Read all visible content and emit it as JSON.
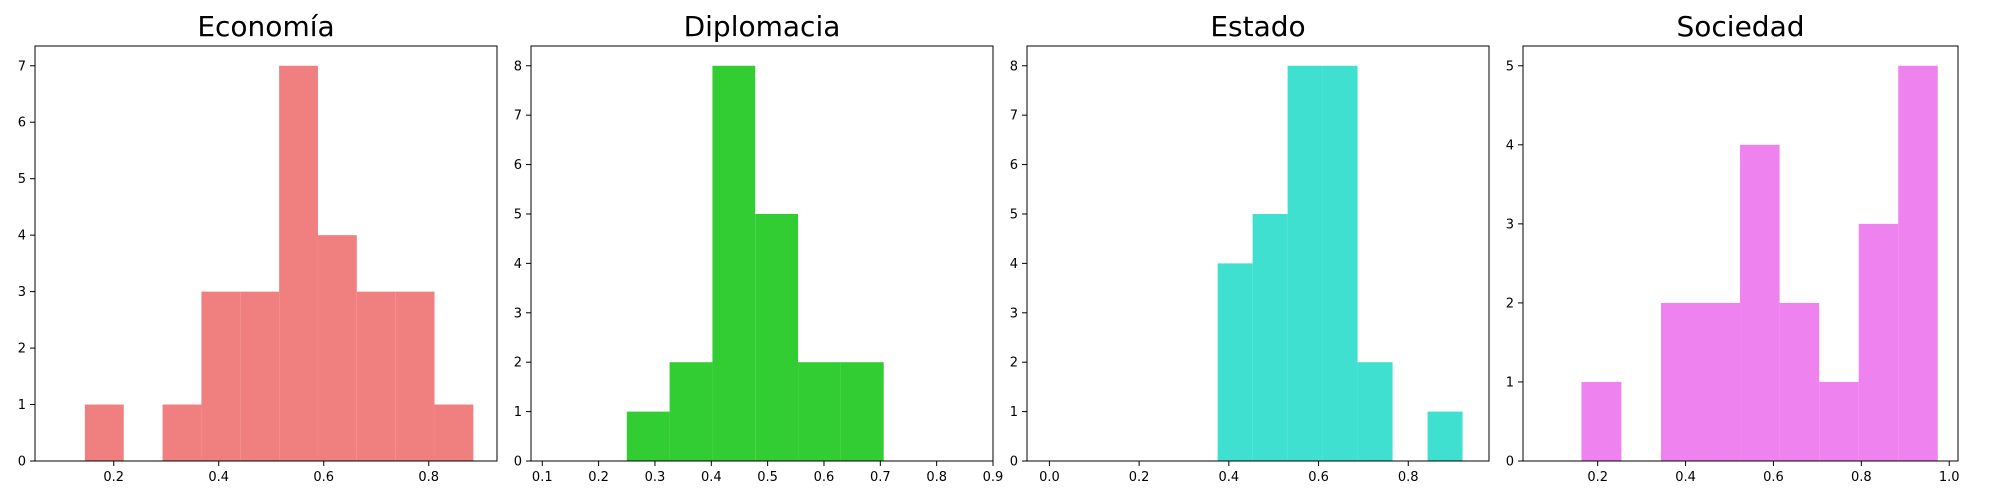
{
  "chart_data": [
    {
      "type": "bar",
      "title": "Economía",
      "color": "#f08080",
      "xlim": [
        0.05,
        0.93
      ],
      "ylim": [
        0,
        7.35
      ],
      "xticks": [
        0.2,
        0.4,
        0.6,
        0.8
      ],
      "xtick_labels": [
        "0.2",
        "0.4",
        "0.6",
        "0.8"
      ],
      "yticks": [
        0,
        1,
        2,
        3,
        4,
        5,
        6,
        7
      ],
      "ytick_labels": [
        "0",
        "1",
        "2",
        "3",
        "4",
        "5",
        "6",
        "7"
      ],
      "bins": [
        {
          "x0": 0.145,
          "x1": 0.219,
          "count": 1
        },
        {
          "x0": 0.219,
          "x1": 0.293,
          "count": 0
        },
        {
          "x0": 0.293,
          "x1": 0.367,
          "count": 1
        },
        {
          "x0": 0.367,
          "x1": 0.441,
          "count": 3
        },
        {
          "x0": 0.441,
          "x1": 0.515,
          "count": 3
        },
        {
          "x0": 0.515,
          "x1": 0.589,
          "count": 7
        },
        {
          "x0": 0.589,
          "x1": 0.663,
          "count": 4
        },
        {
          "x0": 0.663,
          "x1": 0.737,
          "count": 3
        },
        {
          "x0": 0.737,
          "x1": 0.811,
          "count": 3
        },
        {
          "x0": 0.811,
          "x1": 0.885,
          "count": 1
        }
      ]
    },
    {
      "type": "bar",
      "title": "Diplomacia",
      "color": "#32cd32",
      "xlim": [
        0.08,
        0.9
      ],
      "ylim": [
        0,
        8.4
      ],
      "xticks": [
        0.1,
        0.2,
        0.3,
        0.4,
        0.5,
        0.6,
        0.7,
        0.8,
        0.9
      ],
      "xtick_labels": [
        "0.1",
        "0.2",
        "0.3",
        "0.4",
        "0.5",
        "0.6",
        "0.7",
        "0.8",
        "0.9"
      ],
      "yticks": [
        0,
        1,
        2,
        3,
        4,
        5,
        6,
        7,
        8
      ],
      "ytick_labels": [
        "0",
        "1",
        "2",
        "3",
        "4",
        "5",
        "6",
        "7",
        "8"
      ],
      "bins": [
        {
          "x0": 0.25,
          "x1": 0.326,
          "count": 1
        },
        {
          "x0": 0.326,
          "x1": 0.402,
          "count": 2
        },
        {
          "x0": 0.402,
          "x1": 0.478,
          "count": 8
        },
        {
          "x0": 0.478,
          "x1": 0.554,
          "count": 5
        },
        {
          "x0": 0.554,
          "x1": 0.63,
          "count": 2
        },
        {
          "x0": 0.63,
          "x1": 0.706,
          "count": 2
        }
      ]
    },
    {
      "type": "bar",
      "title": "Estado",
      "color": "#40e0d0",
      "xlim": [
        -0.05,
        0.98
      ],
      "ylim": [
        0,
        8.4
      ],
      "xticks": [
        0.0,
        0.2,
        0.4,
        0.6,
        0.8
      ],
      "xtick_labels": [
        "0.0",
        "0.2",
        "0.4",
        "0.6",
        "0.8"
      ],
      "yticks": [
        0,
        1,
        2,
        3,
        4,
        5,
        6,
        7,
        8
      ],
      "ytick_labels": [
        "0",
        "1",
        "2",
        "3",
        "4",
        "5",
        "6",
        "7",
        "8"
      ],
      "bins": [
        {
          "x0": 0.375,
          "x1": 0.453,
          "count": 4
        },
        {
          "x0": 0.453,
          "x1": 0.531,
          "count": 5
        },
        {
          "x0": 0.531,
          "x1": 0.609,
          "count": 8
        },
        {
          "x0": 0.609,
          "x1": 0.687,
          "count": 8
        },
        {
          "x0": 0.687,
          "x1": 0.765,
          "count": 2
        },
        {
          "x0": 0.765,
          "x1": 0.843,
          "count": 0
        },
        {
          "x0": 0.843,
          "x1": 0.921,
          "count": 1
        }
      ]
    },
    {
      "type": "bar",
      "title": "Sociedad",
      "color": "#ee82ee",
      "xlim": [
        0.03,
        1.02
      ],
      "ylim": [
        0,
        5.25
      ],
      "xticks": [
        0.2,
        0.4,
        0.6,
        0.8,
        1.0
      ],
      "xtick_labels": [
        "0.2",
        "0.4",
        "0.6",
        "0.8",
        "1.0"
      ],
      "yticks": [
        0,
        1,
        2,
        3,
        4,
        5
      ],
      "ytick_labels": [
        "0",
        "1",
        "2",
        "3",
        "4",
        "5"
      ],
      "bins": [
        {
          "x0": 0.163,
          "x1": 0.254,
          "count": 1
        },
        {
          "x0": 0.254,
          "x1": 0.344,
          "count": 0
        },
        {
          "x0": 0.344,
          "x1": 0.434,
          "count": 2
        },
        {
          "x0": 0.434,
          "x1": 0.524,
          "count": 2
        },
        {
          "x0": 0.524,
          "x1": 0.614,
          "count": 4
        },
        {
          "x0": 0.614,
          "x1": 0.704,
          "count": 2
        },
        {
          "x0": 0.704,
          "x1": 0.794,
          "count": 1
        },
        {
          "x0": 0.794,
          "x1": 0.884,
          "count": 3
        },
        {
          "x0": 0.884,
          "x1": 0.974,
          "count": 5
        }
      ]
    }
  ]
}
